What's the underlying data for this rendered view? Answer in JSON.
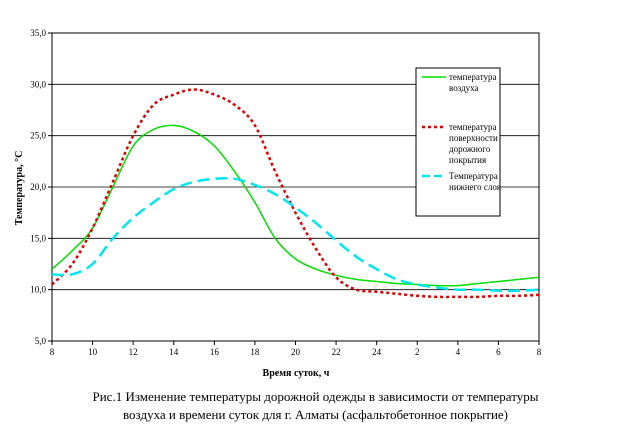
{
  "caption": {
    "line1": "Рис.1 Изменение температуры дорожной одежды  в зависимости от температуры",
    "line2": "воздуха и времени суток для г. Алматы  (асфальтобетонное покрытие)"
  },
  "chart_data": {
    "type": "line",
    "ylabel": "Температура, °С",
    "xlabel": "Время суток, ч",
    "ylim": [
      5,
      35
    ],
    "yticks": [
      "5,0",
      "10,0",
      "15,0",
      "20,0",
      "25,0",
      "30,0",
      "35,0"
    ],
    "xtick_labels": [
      "8",
      "10",
      "12",
      "14",
      "16",
      "18",
      "20",
      "22",
      "24",
      "2",
      "4",
      "6",
      "8"
    ],
    "grid": "horizontal",
    "legend_position": "right",
    "x": [
      8,
      9,
      10,
      11,
      12,
      13,
      14,
      15,
      16,
      17,
      18,
      19,
      20,
      21,
      22,
      23,
      24,
      25,
      26,
      27,
      28,
      29,
      30,
      31,
      32
    ],
    "series": [
      {
        "name": "температура воздуха",
        "color": "#00dd00",
        "style": "solid",
        "values": [
          12.0,
          13.8,
          16.0,
          20.0,
          24.0,
          25.6,
          26.0,
          25.4,
          24.0,
          21.5,
          18.5,
          15.0,
          13.0,
          12.0,
          11.4,
          11.0,
          10.8,
          10.6,
          10.5,
          10.4,
          10.4,
          10.6,
          10.8,
          11.0,
          11.2
        ]
      },
      {
        "name": "температура поверхности дорожного покрытия",
        "color": "#dd0000",
        "style": "dotted",
        "values": [
          10.5,
          12.5,
          16.0,
          20.5,
          25.0,
          28.0,
          29.0,
          29.5,
          29.0,
          28.0,
          26.0,
          21.5,
          17.5,
          14.0,
          11.2,
          10.0,
          9.8,
          9.6,
          9.4,
          9.3,
          9.3,
          9.3,
          9.4,
          9.4,
          9.5
        ]
      },
      {
        "name": "Температура нижнего слоя",
        "color": "#00e5ee",
        "style": "dashed",
        "values": [
          11.5,
          11.5,
          12.5,
          15.0,
          17.0,
          18.5,
          19.8,
          20.5,
          20.8,
          20.8,
          20.2,
          19.3,
          18.0,
          16.5,
          14.8,
          13.2,
          12.0,
          11.0,
          10.5,
          10.2,
          10.0,
          10.0,
          9.9,
          9.9,
          10.0
        ]
      }
    ]
  }
}
